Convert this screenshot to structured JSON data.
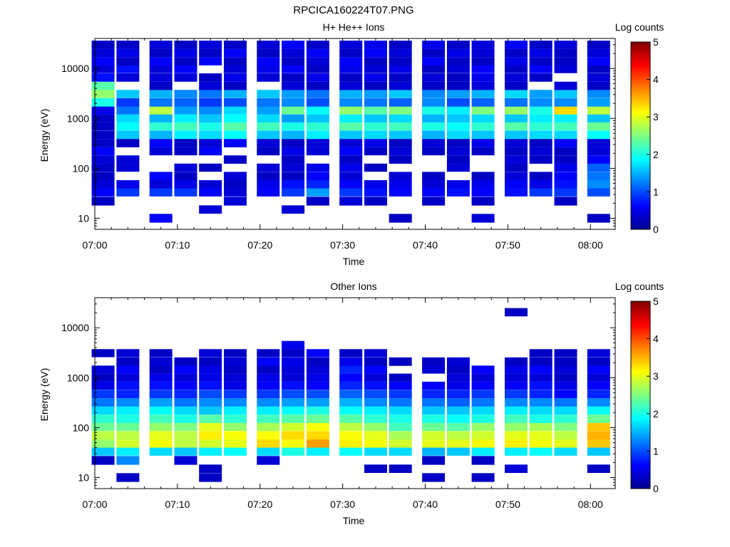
{
  "figure": {
    "title": "RPCICA160224T07.PNG"
  },
  "colormap": {
    "stops": [
      "#00008f",
      "#0000ff",
      "#00ffff",
      "#ffff00",
      "#ff8000",
      "#ff0000",
      "#800000"
    ]
  },
  "chart_data": [
    {
      "type": "heatmap",
      "title": "H+ He++ Ions",
      "xlabel": "Time",
      "ylabel": "Energy (eV)",
      "xlim": [
        "07:00",
        "08:03"
      ],
      "ylim": [
        6,
        40000
      ],
      "yscale": "log",
      "x_ticks": [
        "07:00",
        "07:10",
        "07:20",
        "07:30",
        "07:40",
        "07:50",
        "08:00"
      ],
      "y_ticks": [
        "10",
        "100",
        "1000",
        "10000"
      ],
      "colorbar": {
        "label": "Log counts",
        "range": [
          0,
          5
        ],
        "ticks": [
          "0",
          "1",
          "2",
          "3",
          "4",
          "5"
        ]
      },
      "time_bins": [
        "07:01",
        "07:04",
        "07:08",
        "07:11",
        "07:14",
        "07:17",
        "07:21",
        "07:24",
        "07:27",
        "07:31",
        "07:34",
        "07:37",
        "07:41",
        "07:44",
        "07:47",
        "07:51",
        "07:54",
        "07:57",
        "08:01"
      ],
      "energy_bins": [
        10,
        15,
        22,
        33,
        48,
        70,
        103,
        150,
        220,
        320,
        470,
        690,
        1000,
        1450,
        2100,
        3100,
        4500,
        6600,
        9700,
        14000,
        20500,
        30000
      ],
      "z": [
        [
          0.0,
          0.0,
          0.3,
          0.6,
          0.4,
          0.3,
          0.3,
          0.4,
          0.6,
          0.3,
          0.3,
          0.3,
          0.3,
          0.5,
          2.0,
          2.6,
          2.3,
          0.7,
          0.4,
          0.6,
          0.4,
          0.3
        ],
        [
          0.0,
          0.0,
          0.0,
          0.9,
          0.5,
          0.0,
          0.4,
          0.4,
          0.0,
          0.3,
          1.6,
          1.9,
          1.7,
          1.2,
          0.9,
          1.6,
          0.0,
          0.4,
          0.7,
          0.3,
          0.5,
          0.3
        ],
        [
          0.6,
          0.0,
          0.0,
          0.9,
          0.4,
          0.6,
          0.0,
          0.0,
          0.4,
          0.6,
          1.5,
          2.1,
          1.5,
          2.8,
          1.2,
          1.5,
          0.3,
          0.4,
          0.4,
          0.6,
          0.3,
          0.4
        ],
        [
          0.0,
          0.0,
          0.0,
          0.9,
          0.5,
          0.3,
          0.4,
          0.0,
          0.3,
          0.3,
          1.8,
          2.2,
          1.8,
          1.4,
          1.1,
          1.3,
          0.0,
          0.4,
          0.6,
          0.3,
          0.5,
          0.3
        ],
        [
          0.0,
          0.4,
          0.0,
          0.6,
          0.4,
          0.0,
          0.3,
          0.0,
          0.6,
          0.4,
          1.7,
          2.0,
          1.6,
          1.3,
          0.9,
          1.2,
          0.4,
          0.3,
          0.0,
          0.6,
          0.3,
          0.4
        ],
        [
          0.0,
          0.0,
          0.4,
          0.4,
          0.3,
          0.4,
          0.0,
          0.3,
          0.0,
          0.6,
          1.9,
          2.3,
          1.9,
          1.7,
          1.0,
          1.5,
          0.3,
          0.5,
          0.4,
          0.3,
          0.6,
          0.3
        ],
        [
          0.0,
          0.0,
          0.0,
          0.6,
          0.5,
          0.3,
          0.4,
          0.0,
          0.3,
          0.4,
          1.6,
          2.2,
          1.7,
          1.4,
          1.2,
          1.6,
          0.0,
          0.4,
          0.5,
          0.6,
          0.3,
          0.4
        ],
        [
          0.0,
          0.4,
          0.0,
          0.9,
          0.7,
          0.3,
          0.4,
          0.3,
          0.5,
          0.3,
          1.5,
          2.0,
          1.4,
          2.4,
          1.3,
          1.4,
          0.4,
          0.3,
          0.6,
          0.3,
          0.4,
          0.6
        ],
        [
          0.0,
          0.0,
          0.3,
          1.4,
          0.8,
          0.6,
          0.5,
          0.0,
          0.4,
          0.4,
          1.8,
          2.1,
          1.6,
          1.9,
          1.0,
          1.2,
          0.3,
          0.5,
          0.3,
          0.4,
          0.6,
          0.3
        ],
        [
          0.0,
          0.0,
          0.4,
          0.9,
          0.6,
          0.4,
          0.5,
          0.3,
          0.6,
          0.4,
          1.6,
          2.3,
          1.8,
          2.6,
          1.3,
          1.5,
          0.4,
          0.3,
          0.5,
          0.6,
          0.3,
          0.4
        ],
        [
          0.0,
          0.0,
          0.3,
          0.7,
          0.5,
          0.0,
          0.3,
          0.0,
          0.3,
          0.5,
          1.7,
          2.1,
          1.6,
          2.3,
          1.2,
          1.4,
          0.3,
          0.5,
          0.4,
          0.3,
          0.6,
          0.5
        ],
        [
          0.3,
          0.0,
          0.0,
          0.6,
          0.5,
          0.4,
          0.0,
          0.3,
          0.4,
          0.3,
          1.6,
          2.2,
          1.7,
          2.5,
          1.1,
          1.6,
          0.4,
          0.3,
          0.5,
          0.3,
          0.4,
          0.3
        ],
        [
          0.0,
          0.0,
          0.3,
          0.6,
          0.4,
          0.3,
          0.0,
          0.0,
          0.3,
          0.4,
          1.5,
          2.0,
          1.5,
          2.0,
          1.3,
          1.3,
          0.3,
          0.4,
          0.3,
          0.6,
          0.3,
          0.5
        ],
        [
          0.0,
          0.0,
          0.0,
          0.7,
          0.5,
          0.0,
          0.4,
          0.3,
          0.4,
          0.3,
          1.7,
          1.9,
          1.6,
          1.8,
          1.0,
          1.4,
          0.3,
          0.3,
          0.4,
          0.3,
          0.5,
          0.3
        ],
        [
          0.4,
          0.0,
          0.3,
          0.6,
          0.5,
          0.3,
          0.0,
          0.0,
          0.3,
          0.5,
          1.6,
          2.1,
          1.7,
          2.5,
          1.1,
          1.5,
          0.4,
          0.5,
          0.6,
          0.3,
          0.4,
          0.4
        ],
        [
          0.0,
          0.0,
          0.0,
          0.7,
          0.6,
          0.4,
          0.3,
          0.4,
          0.3,
          0.4,
          1.6,
          2.3,
          1.6,
          2.6,
          1.2,
          1.7,
          0.3,
          0.4,
          0.3,
          0.5,
          0.3,
          0.6
        ],
        [
          0.0,
          0.0,
          0.0,
          0.9,
          0.5,
          0.3,
          0.0,
          0.3,
          0.4,
          0.3,
          1.7,
          2.1,
          1.8,
          2.0,
          1.3,
          1.4,
          0.0,
          0.3,
          0.6,
          0.3,
          0.5,
          0.3
        ],
        [
          0.0,
          0.0,
          0.3,
          0.9,
          0.7,
          0.6,
          0.5,
          0.3,
          0.3,
          0.6,
          1.7,
          2.2,
          1.8,
          3.3,
          1.3,
          1.6,
          0.4,
          0.0,
          0.4,
          0.3,
          0.3,
          0.4
        ],
        [
          0.3,
          0.0,
          0.0,
          1.0,
          1.3,
          1.2,
          1.1,
          0.6,
          0.4,
          0.4,
          1.9,
          2.4,
          1.6,
          2.8,
          1.4,
          1.3,
          0.3,
          0.4,
          0.3,
          0.6,
          0.4,
          0.3
        ]
      ]
    },
    {
      "type": "heatmap",
      "title": "Other Ions",
      "xlabel": "Time",
      "ylabel": "Energy (eV)",
      "xlim": [
        "07:00",
        "08:03"
      ],
      "ylim": [
        6,
        40000
      ],
      "yscale": "log",
      "x_ticks": [
        "07:00",
        "07:10",
        "07:20",
        "07:30",
        "07:40",
        "07:50",
        "08:00"
      ],
      "y_ticks": [
        "10",
        "100",
        "1000",
        "10000"
      ],
      "colorbar": {
        "label": "Log counts",
        "range": [
          0,
          5
        ],
        "ticks": [
          "0",
          "1",
          "2",
          "3",
          "4",
          "5"
        ]
      },
      "time_bins": [
        "07:01",
        "07:04",
        "07:08",
        "07:11",
        "07:14",
        "07:17",
        "07:21",
        "07:24",
        "07:27",
        "07:31",
        "07:34",
        "07:37",
        "07:41",
        "07:44",
        "07:47",
        "07:51",
        "07:54",
        "07:57",
        "08:01"
      ],
      "energy_bins": [
        10,
        15,
        22,
        33,
        48,
        70,
        103,
        150,
        220,
        320,
        470,
        690,
        1000,
        1450,
        2100,
        3100,
        4500,
        6600,
        9700,
        14000,
        20500,
        30000
      ],
      "z": [
        [
          0.0,
          0.0,
          0.3,
          1.6,
          2.6,
          2.8,
          2.4,
          2.1,
          1.7,
          1.2,
          0.9,
          0.5,
          0.3,
          0.4,
          0.0,
          0.3,
          0.0,
          0.0,
          0.0,
          0.0,
          0.0,
          0.0
        ],
        [
          0.3,
          0.0,
          1.3,
          1.8,
          2.9,
          2.8,
          2.4,
          2.0,
          1.8,
          1.3,
          0.8,
          0.7,
          0.4,
          0.6,
          0.3,
          0.4,
          0.0,
          0.0,
          0.0,
          0.0,
          0.0,
          0.0
        ],
        [
          0.0,
          0.0,
          0.0,
          1.7,
          3.1,
          3.0,
          2.6,
          2.2,
          1.9,
          1.4,
          0.9,
          0.7,
          0.5,
          0.3,
          0.4,
          0.3,
          0.0,
          0.0,
          0.0,
          0.0,
          0.0,
          0.0
        ],
        [
          0.0,
          0.0,
          0.4,
          1.6,
          2.8,
          2.8,
          2.5,
          2.0,
          1.7,
          1.2,
          0.8,
          0.6,
          0.4,
          0.6,
          0.3,
          0.0,
          0.0,
          0.0,
          0.0,
          0.0,
          0.0,
          0.0
        ],
        [
          0.3,
          0.3,
          0.0,
          1.8,
          2.9,
          3.2,
          3.0,
          2.3,
          1.6,
          1.3,
          1.0,
          0.7,
          0.5,
          0.5,
          0.3,
          0.4,
          0.0,
          0.0,
          0.0,
          0.0,
          0.0,
          0.0
        ],
        [
          0.0,
          0.0,
          0.0,
          1.9,
          3.0,
          3.1,
          2.6,
          2.1,
          1.8,
          1.3,
          0.9,
          0.5,
          0.4,
          0.3,
          0.4,
          0.3,
          0.0,
          0.0,
          0.0,
          0.0,
          0.0,
          0.0
        ],
        [
          0.0,
          0.0,
          0.4,
          1.7,
          3.3,
          3.1,
          2.7,
          2.2,
          1.8,
          1.3,
          0.9,
          0.6,
          0.5,
          0.3,
          0.6,
          0.3,
          0.0,
          0.0,
          0.0,
          0.0,
          0.0,
          0.0
        ],
        [
          0.0,
          0.0,
          0.0,
          2.0,
          3.1,
          3.3,
          2.9,
          2.3,
          1.9,
          1.4,
          1.0,
          0.7,
          0.4,
          0.4,
          0.5,
          0.3,
          0.5,
          0.0,
          0.0,
          0.0,
          0.0,
          0.0
        ],
        [
          0.0,
          0.0,
          0.0,
          1.8,
          3.6,
          3.3,
          3.1,
          2.4,
          2.0,
          1.4,
          1.0,
          0.6,
          0.5,
          0.4,
          0.3,
          0.6,
          0.0,
          0.0,
          0.0,
          0.0,
          0.0,
          0.0
        ],
        [
          0.0,
          0.0,
          0.0,
          1.9,
          3.2,
          3.1,
          2.8,
          2.3,
          1.9,
          1.5,
          1.1,
          0.8,
          0.6,
          0.8,
          0.5,
          0.3,
          0.0,
          0.0,
          0.0,
          0.0,
          0.0,
          0.0
        ],
        [
          0.0,
          0.3,
          0.0,
          1.7,
          3.1,
          3.0,
          2.6,
          2.1,
          1.8,
          1.3,
          1.0,
          0.7,
          0.4,
          0.6,
          0.3,
          0.4,
          0.0,
          0.0,
          0.0,
          0.0,
          0.0,
          0.0
        ],
        [
          0.0,
          0.3,
          0.0,
          1.7,
          2.9,
          2.7,
          2.2,
          2.0,
          1.7,
          1.2,
          0.9,
          0.6,
          0.3,
          0.0,
          0.3,
          0.0,
          0.0,
          0.0,
          0.0,
          0.0,
          0.0,
          0.0
        ],
        [
          0.3,
          0.0,
          0.3,
          1.5,
          3.0,
          2.9,
          2.4,
          2.0,
          1.6,
          1.2,
          0.8,
          0.6,
          0.0,
          0.4,
          0.3,
          0.0,
          0.0,
          0.0,
          0.0,
          0.0,
          0.0,
          0.0
        ],
        [
          0.0,
          0.0,
          0.0,
          1.6,
          3.0,
          2.8,
          2.3,
          1.9,
          1.6,
          1.1,
          0.8,
          0.5,
          0.4,
          0.3,
          0.4,
          0.0,
          0.0,
          0.0,
          0.0,
          0.0,
          0.0,
          0.0
        ],
        [
          0.3,
          0.0,
          0.3,
          1.8,
          3.1,
          2.9,
          2.6,
          2.0,
          1.7,
          1.2,
          0.9,
          0.6,
          0.4,
          0.6,
          0.0,
          0.0,
          0.0,
          0.0,
          0.0,
          0.0,
          0.0,
          0.0
        ],
        [
          0.0,
          0.4,
          0.0,
          1.8,
          3.2,
          3.0,
          2.6,
          2.2,
          1.8,
          1.3,
          0.9,
          0.6,
          0.4,
          0.5,
          0.3,
          0.0,
          0.0,
          0.0,
          0.0,
          0.0,
          0.3,
          0.0
        ],
        [
          0.0,
          0.0,
          0.0,
          1.9,
          3.1,
          3.0,
          2.7,
          2.0,
          1.7,
          1.3,
          0.8,
          0.7,
          0.4,
          0.6,
          0.3,
          0.3,
          0.0,
          0.0,
          0.0,
          0.0,
          0.0,
          0.0
        ],
        [
          0.0,
          0.0,
          0.0,
          1.7,
          3.0,
          2.8,
          2.5,
          2.1,
          1.7,
          1.2,
          0.6,
          0.5,
          0.3,
          0.4,
          0.3,
          0.3,
          0.0,
          0.0,
          0.0,
          0.0,
          0.0,
          0.0
        ],
        [
          0.0,
          0.3,
          0.0,
          1.6,
          3.4,
          3.5,
          3.4,
          2.4,
          1.9,
          1.3,
          0.8,
          0.6,
          0.4,
          0.6,
          0.3,
          0.4,
          0.0,
          0.0,
          0.0,
          0.0,
          0.0,
          0.0
        ]
      ]
    }
  ]
}
